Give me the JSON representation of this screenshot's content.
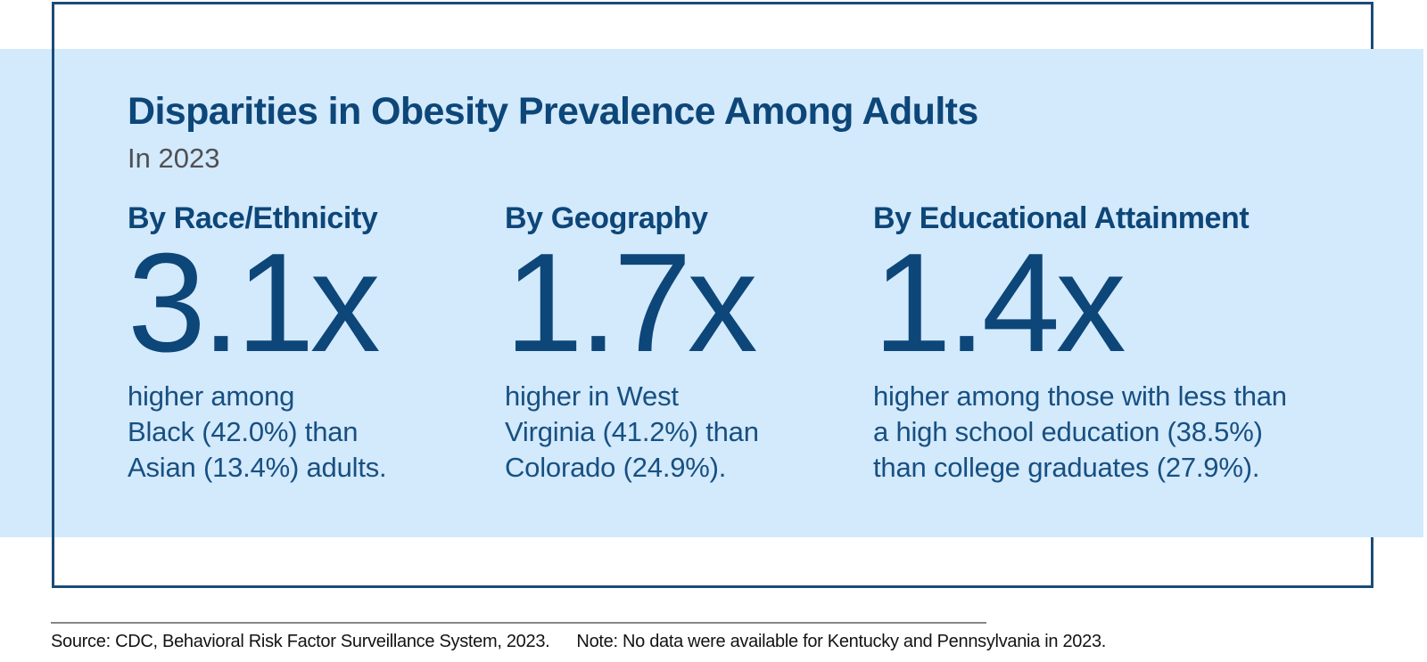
{
  "colors": {
    "navy": "#0d4678",
    "border-navy": "#1b4b77",
    "panel-blue": "#d3e9fc",
    "subtitle-gray": "#4f5052",
    "footer-ink": "#131313",
    "divider-gray": "#85878b"
  },
  "header": {
    "title": "Disparities in Obesity Prevalence Among Adults",
    "subtitle": "In 2023"
  },
  "stats": [
    {
      "category": "By Race/Ethnicity",
      "multiplier": "3.1x",
      "description_lines": [
        "higher among",
        "Black (42.0%) than",
        "Asian (13.4%) adults."
      ]
    },
    {
      "category": "By Geography",
      "multiplier": "1.7x",
      "description_lines": [
        "higher in West",
        "Virginia (41.2%) than",
        "Colorado (24.9%)."
      ]
    },
    {
      "category": "By Educational Attainment",
      "multiplier": "1.4x",
      "description_lines": [
        "higher among those with less than",
        "a high school education (38.5%)",
        "than college graduates (27.9%)."
      ]
    }
  ],
  "footer": {
    "source": "Source: CDC, Behavioral Risk Factor Surveillance System, 2023.",
    "note": "Note: No data were available for Kentucky and Pennsylvania in 2023."
  }
}
